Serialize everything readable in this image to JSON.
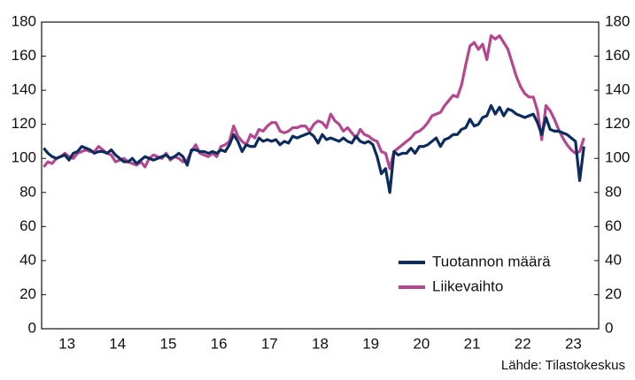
{
  "chart_data": {
    "type": "line",
    "categories": [
      null,
      null,
      null,
      null,
      null,
      null,
      "13",
      null,
      null,
      null,
      null,
      null,
      null,
      null,
      null,
      null,
      null,
      null,
      "14",
      null,
      null,
      null,
      null,
      null,
      null,
      null,
      null,
      null,
      null,
      null,
      "15",
      null,
      null,
      null,
      null,
      null,
      null,
      null,
      null,
      null,
      null,
      null,
      "16",
      null,
      null,
      null,
      null,
      null,
      null,
      null,
      null,
      null,
      null,
      null,
      "17",
      null,
      null,
      null,
      null,
      null,
      null,
      null,
      null,
      null,
      null,
      null,
      "18",
      null,
      null,
      null,
      null,
      null,
      null,
      null,
      null,
      null,
      null,
      null,
      "19",
      null,
      null,
      null,
      null,
      null,
      null,
      null,
      null,
      null,
      null,
      null,
      "20",
      null,
      null,
      null,
      null,
      null,
      null,
      null,
      null,
      null,
      null,
      null,
      "21",
      null,
      null,
      null,
      null,
      null,
      null,
      null,
      null,
      null,
      null,
      null,
      "22",
      null,
      null,
      null,
      null,
      null,
      null,
      null,
      null,
      null,
      null,
      null,
      "23",
      null,
      null,
      null,
      null,
      null
    ],
    "series": [
      {
        "name": "Tuotannon määrä",
        "color": "#0d2c5e",
        "values": [
          106,
          103,
          101,
          100,
          101,
          102,
          99,
          103,
          104,
          107,
          106,
          105,
          103,
          104,
          104,
          103,
          105,
          102,
          100,
          98,
          98,
          100,
          97,
          99,
          101,
          100,
          99,
          100,
          101,
          102,
          100,
          101,
          103,
          101,
          96,
          105,
          105,
          104,
          104,
          103,
          104,
          103,
          105,
          104,
          108,
          114,
          110,
          104,
          108,
          107,
          107,
          112,
          110,
          111,
          110,
          111,
          108,
          110,
          109,
          113,
          112,
          113,
          114,
          115,
          113,
          109,
          114,
          111,
          112,
          111,
          110,
          112,
          110,
          109,
          113,
          110,
          109,
          110,
          108,
          101,
          91,
          94,
          80,
          104,
          102,
          103,
          103,
          106,
          103,
          107,
          107,
          108,
          110,
          112,
          107,
          111,
          112,
          114,
          114,
          117,
          118,
          123,
          119,
          120,
          124,
          125,
          131,
          126,
          130,
          125,
          129,
          128,
          126,
          125,
          124,
          125,
          126,
          121,
          114,
          124,
          117,
          116,
          116,
          115,
          114,
          112,
          110,
          87,
          107,
          null,
          null,
          null
        ]
      },
      {
        "name": "Liikevaihto",
        "color": "#b5478e",
        "values": [
          95,
          98,
          97,
          100,
          101,
          103,
          101,
          100,
          103,
          104,
          105,
          104,
          104,
          107,
          105,
          103,
          102,
          98,
          99,
          100,
          98,
          97,
          96,
          98,
          95,
          100,
          102,
          101,
          100,
          103,
          99,
          101,
          100,
          98,
          99,
          104,
          108,
          103,
          102,
          101,
          103,
          101,
          107,
          108,
          110,
          119,
          113,
          110,
          108,
          114,
          112,
          117,
          116,
          119,
          121,
          121,
          116,
          115,
          116,
          118,
          118,
          119,
          119,
          116,
          120,
          122,
          121,
          118,
          126,
          122,
          120,
          116,
          118,
          115,
          112,
          117,
          114,
          113,
          111,
          110,
          104,
          103,
          94,
          104,
          106,
          108,
          110,
          112,
          115,
          116,
          118,
          121,
          125,
          126,
          127,
          131,
          134,
          137,
          136,
          143,
          155,
          166,
          168,
          164,
          167,
          158,
          172,
          170,
          172,
          168,
          164,
          156,
          148,
          142,
          138,
          136,
          136,
          128,
          111,
          131,
          128,
          123,
          117,
          112,
          108,
          105,
          103,
          104,
          112,
          null,
          null,
          null
        ]
      }
    ],
    "ylim": [
      0,
      180
    ],
    "yticks": [
      0,
      20,
      40,
      60,
      80,
      100,
      120,
      140,
      160,
      180
    ],
    "y2lim": [
      0,
      180
    ],
    "y2ticks": [
      0,
      20,
      40,
      60,
      80,
      100,
      120,
      140,
      160,
      180
    ],
    "grid": false,
    "legend": "lower right",
    "source": "Lähde: Tilastokeskus"
  }
}
